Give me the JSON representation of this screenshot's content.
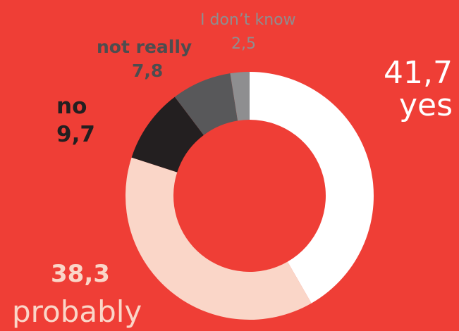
{
  "chart_data": {
    "type": "pie",
    "donut": true,
    "categories": [
      "yes",
      "probably",
      "no",
      "not really",
      "I don’t know"
    ],
    "values": [
      41.7,
      38.3,
      9.7,
      7.8,
      2.5
    ],
    "value_labels": [
      "41,7",
      "38,3",
      "9,7",
      "7,8",
      "2,5"
    ],
    "colors": [
      "#FFFFFF",
      "#FAD6C8",
      "#231F20",
      "#58585A",
      "#8E8E90"
    ],
    "background": "#EF3E36",
    "start_angle_deg": 0,
    "direction": "clockwise",
    "legend": "none"
  }
}
